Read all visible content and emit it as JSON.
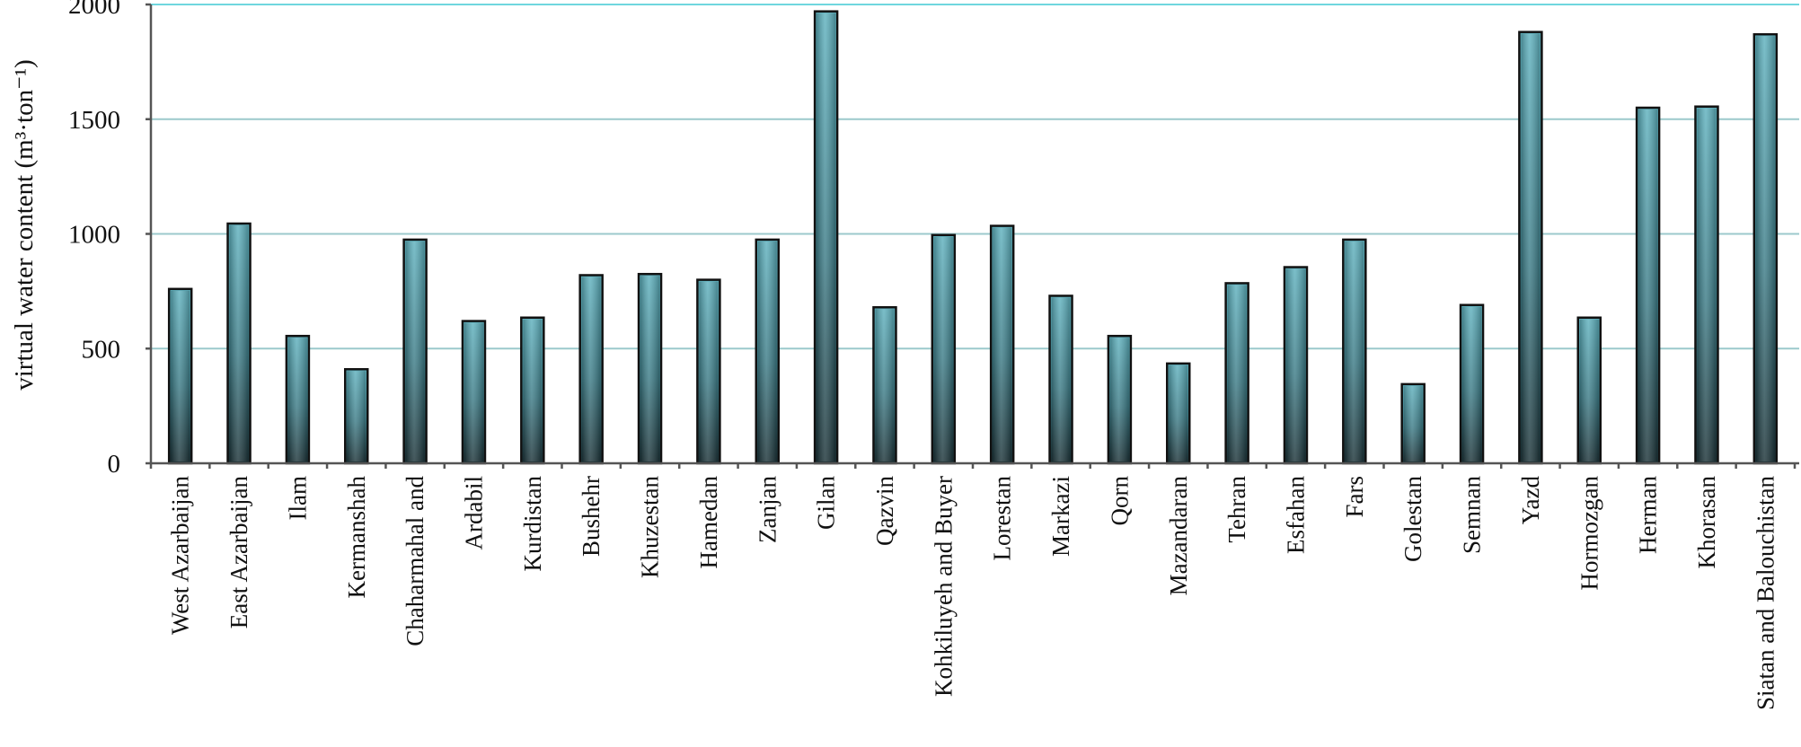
{
  "chart_data": {
    "type": "bar",
    "title": "",
    "xlabel": "",
    "ylabel": "virtual water content (m³·ton⁻¹)",
    "ylim": [
      0,
      2000
    ],
    "yticks": [
      0,
      500,
      1000,
      1500,
      2000
    ],
    "grid": true,
    "legend": "none",
    "bar_color_top": "#5fb2bf",
    "bar_color_bottom": "#1c3338",
    "categories": [
      "West Azarbaijan",
      "East Azarbaijan",
      "Ilam",
      "Kermanshah",
      "Chaharmahal and",
      "Ardabil",
      "Kurdistan",
      "Bushehr",
      "Khuzestan",
      "Hamedan",
      "Zanjan",
      "Gilan",
      "Qazvin",
      "Kohkiluyeh and Buyer",
      "Lorestan",
      "Markazi",
      "Qorn",
      "Mazandaran",
      "Tehran",
      "Esfahan",
      "Fars",
      "Golestan",
      "Semnan",
      "Yazd",
      "Hormozgan",
      "Herman",
      "Khorasan",
      "Siatan and Balouchistan"
    ],
    "values": [
      760,
      1045,
      555,
      410,
      975,
      620,
      635,
      820,
      825,
      800,
      975,
      1970,
      680,
      995,
      1035,
      730,
      555,
      435,
      785,
      855,
      975,
      345,
      690,
      1880,
      635,
      1550,
      1555,
      1870
    ]
  }
}
